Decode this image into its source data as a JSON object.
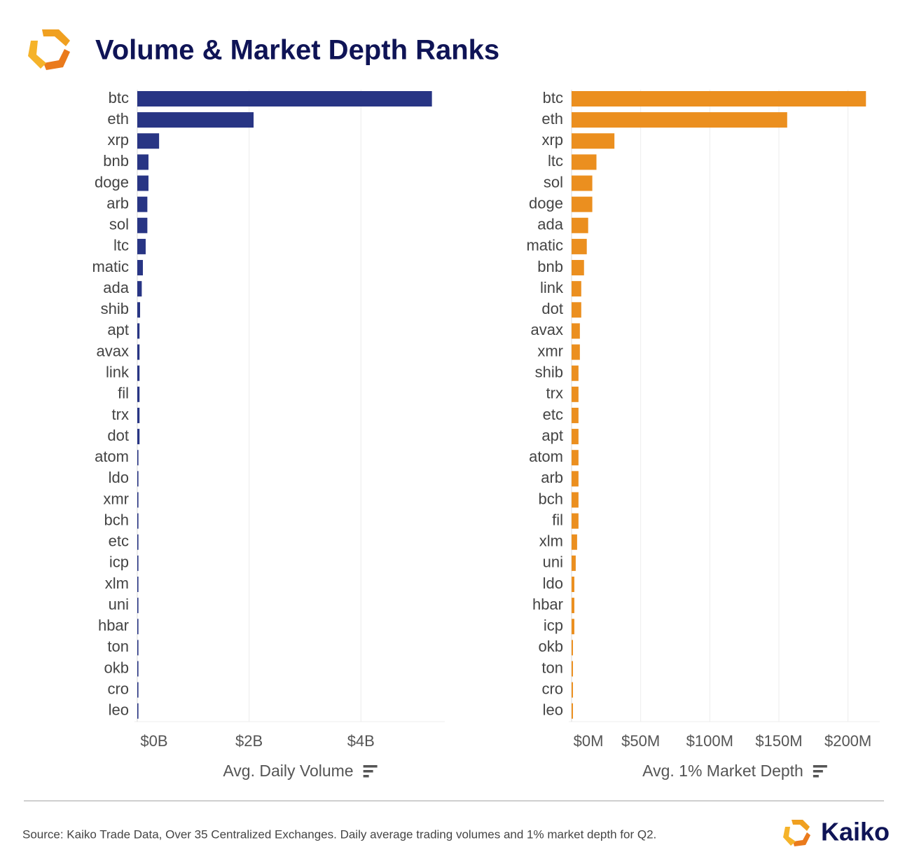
{
  "title": "Volume & Market Depth Ranks",
  "chart_data": [
    {
      "type": "bar",
      "orientation": "horizontal",
      "categories": [
        "btc",
        "eth",
        "xrp",
        "bnb",
        "doge",
        "arb",
        "sol",
        "ltc",
        "matic",
        "ada",
        "shib",
        "apt",
        "avax",
        "link",
        "fil",
        "trx",
        "dot",
        "atom",
        "ldo",
        "xmr",
        "bch",
        "etc",
        "icp",
        "xlm",
        "uni",
        "hbar",
        "ton",
        "okb",
        "cro",
        "leo"
      ],
      "values": [
        5.27,
        2.08,
        0.39,
        0.2,
        0.2,
        0.18,
        0.18,
        0.15,
        0.1,
        0.08,
        0.05,
        0.04,
        0.04,
        0.04,
        0.04,
        0.04,
        0.04,
        0.02,
        0.02,
        0.02,
        0.02,
        0.02,
        0.02,
        0.02,
        0.02,
        0.02,
        0.02,
        0.02,
        0.02,
        0.02
      ],
      "color": "#283584",
      "xlim": [
        0,
        5.5
      ],
      "xticks": [
        {
          "value": 0,
          "label": "$0B"
        },
        {
          "value": 2,
          "label": "$2B"
        },
        {
          "value": 4,
          "label": "$4B"
        }
      ],
      "xlabel": "Avg. Daily Volume",
      "grid": true
    },
    {
      "type": "bar",
      "orientation": "horizontal",
      "categories": [
        "btc",
        "eth",
        "xrp",
        "ltc",
        "sol",
        "doge",
        "ada",
        "matic",
        "bnb",
        "link",
        "dot",
        "avax",
        "xmr",
        "shib",
        "trx",
        "etc",
        "apt",
        "atom",
        "arb",
        "bch",
        "fil",
        "xlm",
        "uni",
        "ldo",
        "hbar",
        "icp",
        "okb",
        "ton",
        "cro",
        "leo"
      ],
      "values": [
        213,
        156,
        31,
        18,
        15,
        15,
        12,
        11,
        9,
        7,
        7,
        6,
        6,
        5,
        5,
        5,
        5,
        5,
        5,
        5,
        5,
        4,
        3,
        2,
        2,
        2,
        1,
        1,
        1,
        1
      ],
      "color": "#eb8f1f",
      "xlim": [
        0,
        223
      ],
      "xticks": [
        {
          "value": 0,
          "label": "$0M"
        },
        {
          "value": 50,
          "label": "$50M"
        },
        {
          "value": 100,
          "label": "$100M"
        },
        {
          "value": 150,
          "label": "$150M"
        },
        {
          "value": 200,
          "label": "$200M"
        }
      ],
      "xlabel": "Avg. 1% Market Depth",
      "grid": true
    }
  ],
  "source": "Source: Kaiko Trade Data, Over 35 Centralized Exchanges. Daily average trading volumes and 1% market depth for Q2.",
  "brand": "Kaiko"
}
